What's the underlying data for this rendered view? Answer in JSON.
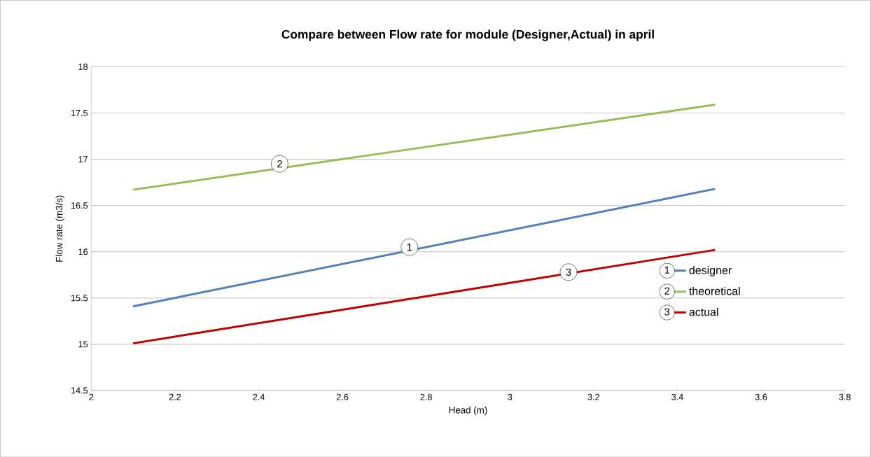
{
  "chart_data": {
    "type": "line",
    "title": "Compare between  Flow rate for module (Designer,Actual) in april",
    "xlabel": "Head (m)",
    "ylabel": "Flow rate (m3/s)",
    "series": [
      {
        "name": "designer",
        "color": "#4f81bd",
        "values": [
          15.41,
          16.68
        ]
      },
      {
        "name": "theoretical",
        "color": "#9bbb59",
        "values": [
          16.67,
          17.59
        ]
      },
      {
        "name": "actual",
        "color": "#c00000",
        "values": [
          15.01,
          16.02
        ]
      }
    ],
    "x": [
      2.1,
      3.49
    ],
    "annotations": [
      {
        "text": "1",
        "x": 2.76,
        "y": 16.05
      },
      {
        "text": "2",
        "x": 2.45,
        "y": 16.95
      },
      {
        "text": "3",
        "x": 3.14,
        "y": 15.78
      }
    ],
    "xlim": [
      2,
      3.8
    ],
    "xticks": [
      2,
      2.2,
      2.4,
      2.6,
      2.8,
      3,
      3.2,
      3.4,
      3.6,
      3.8
    ],
    "ylim": [
      14.5,
      18
    ],
    "yticks": [
      14.5,
      15,
      15.5,
      16,
      16.5,
      17,
      17.5,
      18
    ],
    "grid": "y",
    "legend": "right",
    "marker": "none",
    "line_style": "solid"
  }
}
